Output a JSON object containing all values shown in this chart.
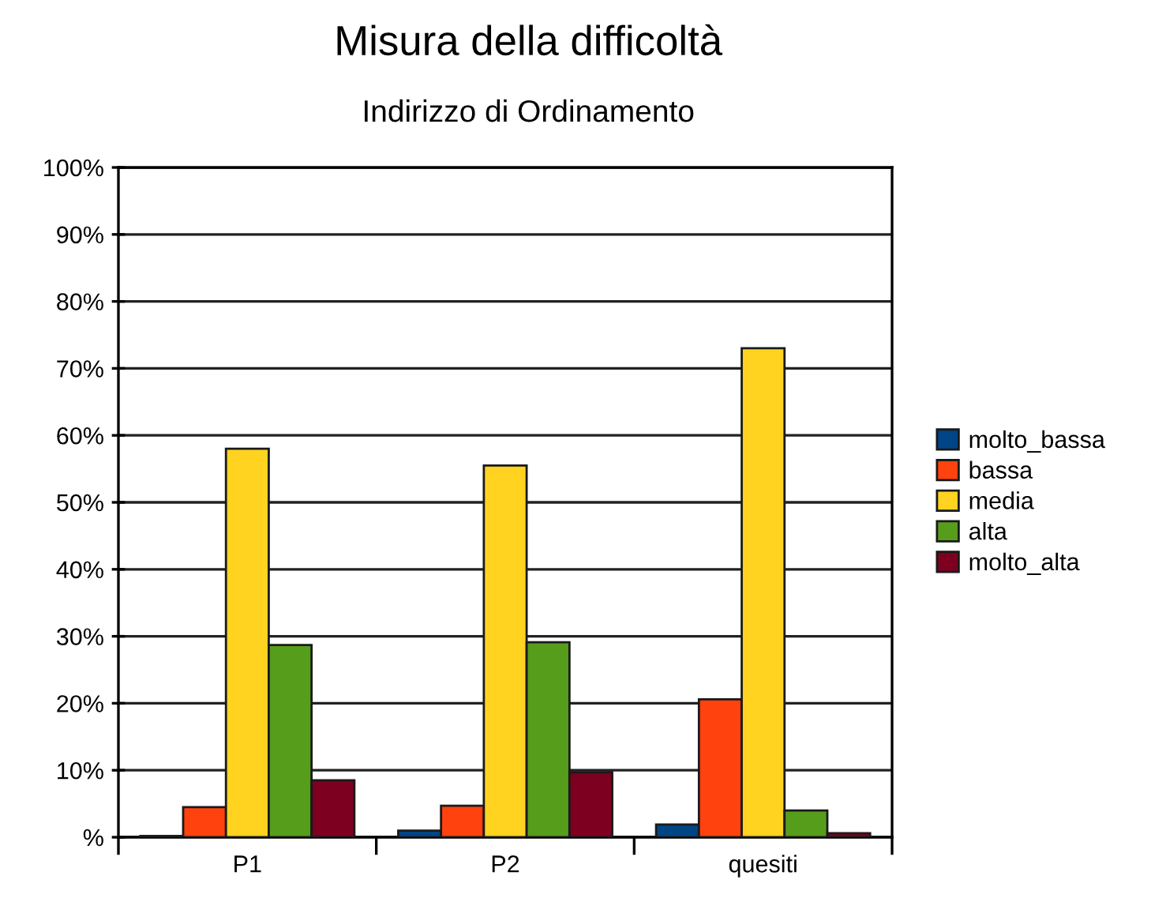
{
  "chart_data": {
    "type": "bar",
    "title": "Misura della difficoltà",
    "subtitle": "Indirizzo di Ordinamento",
    "categories": [
      "P1",
      "P2",
      "quesiti"
    ],
    "series": [
      {
        "name": "molto_bassa",
        "color": "#004586",
        "values": [
          0.2,
          1.0,
          1.9
        ]
      },
      {
        "name": "bassa",
        "color": "#ff420e",
        "values": [
          4.5,
          4.7,
          20.6
        ]
      },
      {
        "name": "media",
        "color": "#ffd320",
        "values": [
          58,
          55.5,
          73
        ]
      },
      {
        "name": "alta",
        "color": "#579d1c",
        "values": [
          28.7,
          29.1,
          4
        ]
      },
      {
        "name": "molto_alta",
        "color": "#7e0021",
        "values": [
          8.5,
          9.7,
          0.6
        ]
      }
    ],
    "ylim": [
      0,
      100
    ],
    "yticks": [
      {
        "value": 0,
        "label": "%"
      },
      {
        "value": 10,
        "label": "10%"
      },
      {
        "value": 20,
        "label": "20%"
      },
      {
        "value": 30,
        "label": "30%"
      },
      {
        "value": 40,
        "label": "40%"
      },
      {
        "value": 50,
        "label": "50%"
      },
      {
        "value": 60,
        "label": "60%"
      },
      {
        "value": 70,
        "label": "70%"
      },
      {
        "value": 80,
        "label": "80%"
      },
      {
        "value": 90,
        "label": "90%"
      },
      {
        "value": 100,
        "label": "100%"
      }
    ],
    "grid": "y",
    "legend": "right"
  }
}
